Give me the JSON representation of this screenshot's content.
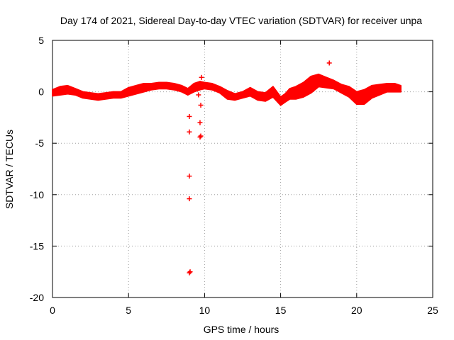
{
  "chart_data": {
    "type": "scatter",
    "title": "Day 174 of 2021, Sidereal Day-to-day VTEC variation (SDTVAR) for receiver unpa",
    "xlabel": "GPS time / hours",
    "ylabel": "SDTVAR / TECUs",
    "xlim": [
      0,
      25
    ],
    "ylim": [
      -20,
      5
    ],
    "xticks": [
      0,
      5,
      10,
      15,
      20,
      25
    ],
    "yticks": [
      5,
      0,
      -5,
      -10,
      -15,
      -20
    ],
    "grid": true,
    "marker": "+",
    "series": [
      {
        "name": "SDTVAR",
        "color": "#ff0000",
        "band_x": [
          0,
          0.5,
          1,
          1.5,
          2,
          2.5,
          3,
          3.5,
          4,
          4.5,
          5,
          5.5,
          6,
          6.5,
          7,
          7.5,
          8,
          8.5,
          8.9,
          9.3,
          9.7,
          10,
          10.5,
          11,
          11.5,
          12,
          12.5,
          13,
          13.5,
          14,
          14.5,
          15,
          15.3,
          15.6,
          16,
          16.5,
          17,
          17.5,
          18,
          18.5,
          19,
          19.5,
          20,
          20.5,
          21,
          21.5,
          22,
          22.5,
          22.9
        ],
        "band_center": [
          -0.1,
          0.1,
          0.2,
          0.0,
          -0.3,
          -0.4,
          -0.5,
          -0.4,
          -0.3,
          -0.3,
          0.0,
          0.2,
          0.4,
          0.5,
          0.6,
          0.6,
          0.5,
          0.3,
          0.0,
          0.4,
          0.6,
          0.6,
          0.5,
          0.2,
          -0.3,
          -0.5,
          -0.3,
          0.0,
          -0.4,
          -0.5,
          0.0,
          -0.9,
          -0.6,
          -0.2,
          -0.1,
          0.2,
          0.7,
          1.1,
          0.9,
          0.7,
          0.3,
          0.0,
          -0.6,
          -0.5,
          0.0,
          0.2,
          0.4,
          0.4,
          0.3
        ],
        "band_halfwidth": [
          0.3,
          0.4,
          0.4,
          0.3,
          0.3,
          0.3,
          0.3,
          0.3,
          0.3,
          0.3,
          0.4,
          0.4,
          0.4,
          0.3,
          0.3,
          0.3,
          0.3,
          0.3,
          0.3,
          0.4,
          0.4,
          0.3,
          0.3,
          0.3,
          0.4,
          0.3,
          0.3,
          0.4,
          0.4,
          0.4,
          0.5,
          0.4,
          0.4,
          0.5,
          0.6,
          0.7,
          0.8,
          0.6,
          0.5,
          0.4,
          0.4,
          0.5,
          0.6,
          0.7,
          0.6,
          0.5,
          0.4,
          0.4,
          0.3
        ],
        "outliers": [
          {
            "x": 9.0,
            "y": -17.6
          },
          {
            "x": 9.05,
            "y": -17.5
          },
          {
            "x": 9.0,
            "y": -10.4
          },
          {
            "x": 9.0,
            "y": -8.2
          },
          {
            "x": 9.0,
            "y": -3.9
          },
          {
            "x": 9.0,
            "y": -2.4
          },
          {
            "x": 9.7,
            "y": -4.4
          },
          {
            "x": 9.75,
            "y": -4.3
          },
          {
            "x": 9.7,
            "y": -3.0
          },
          {
            "x": 9.75,
            "y": -1.3
          },
          {
            "x": 9.6,
            "y": -0.3
          },
          {
            "x": 9.8,
            "y": 1.4
          },
          {
            "x": 18.2,
            "y": 2.8
          }
        ]
      }
    ]
  }
}
